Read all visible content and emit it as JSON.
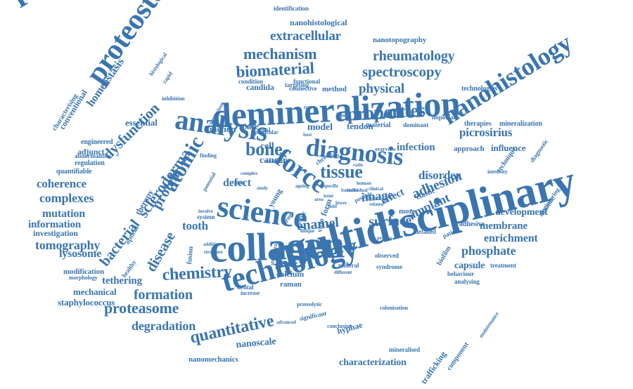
{
  "title": "",
  "palette": {
    "word_color": "#3a75b0",
    "background": "#ffffff"
  },
  "words": [
    "multidisciplinary",
    "demineralization",
    "remineralization",
    "technology",
    "collagen",
    "science",
    "analysis",
    "diagnosis",
    "proteostasis",
    "nanohistology",
    "biomaterial",
    "mechanism",
    "rheumatology",
    "spectroscopy",
    "extracellular",
    "nanohistological",
    "nanotopography",
    "homeostasis",
    "properties",
    "force",
    "tissue",
    "bone",
    "atomic",
    "protein",
    "scleroderma",
    "dysfunction",
    "disease",
    "bacterial",
    "tooth",
    "chemistry",
    "formation",
    "proteasome",
    "degradation",
    "quantitative",
    "nanoscale",
    "nanomechanics",
    "characterization",
    "enamel",
    "surface",
    "adhesion",
    "image",
    "implant",
    "phosphate",
    "enrichment",
    "membrane",
    "development",
    "capsule",
    "treatment",
    "behaviour",
    "analysing",
    "trafficking",
    "component",
    "mineralised",
    "maintenance",
    "hyphae",
    "significant",
    "calcium",
    "raman",
    "dental",
    "increase",
    "syndrome",
    "colonisation",
    "tethering",
    "mechanical",
    "staphylococcus",
    "modification",
    "morphology",
    "lysosome",
    "tomography",
    "information",
    "investigation",
    "mutation",
    "complexes",
    "coherence",
    "quantifiable",
    "regulation",
    "abnormalities",
    "adjunct",
    "engineered",
    "essential",
    "conventional",
    "characterising",
    "physical",
    "method",
    "candida",
    "targeting",
    "technologies",
    "picrosirius",
    "infection",
    "approach",
    "influence",
    "disorder",
    "effect",
    "elastic",
    "model",
    "tendon",
    "material",
    "dominant",
    "therapies",
    "mineralization",
    "technique",
    "diagnostic",
    "dynamic",
    "engineering",
    "cancer",
    "defect",
    "cell",
    "function",
    "space",
    "renal",
    "finding",
    "potential",
    "optical",
    "therapy",
    "healthy",
    "fusion",
    "system",
    "involve",
    "addition",
    "changes",
    "structure",
    "structural",
    "vitro",
    "young",
    "drug",
    "topic",
    "form",
    "more",
    "detailed",
    "patient",
    "adhesive",
    "biofilm",
    "observed",
    "mineral",
    "different",
    "proteolytic",
    "conclusion",
    "advanced",
    "identification",
    "connective",
    "functional",
    "condition",
    "based",
    "important",
    "rapid",
    "histological",
    "inhibition",
    "comparison",
    "particular",
    "multiple",
    "complex",
    "chronic",
    "levels",
    "overview",
    "possible",
    "elasticity",
    "related",
    "unique",
    "intensity",
    "clinical",
    "individual",
    "human",
    "bacteria",
    "lower",
    "field",
    "ratio",
    "specific",
    "study",
    "fibril",
    "area",
    "issue",
    "ageing",
    "process",
    "host",
    "type"
  ]
}
